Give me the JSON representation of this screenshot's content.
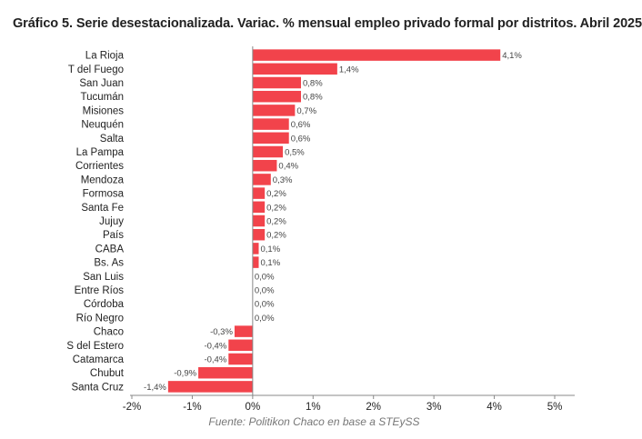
{
  "title": "Gráfico 5. Serie desestacionalizada. Variac. % mensual empleo privado formal por distritos. Abril 2025",
  "source": "Fuente: Politikon Chaco en base a STEySS",
  "colors": {
    "bar": "#f2434b",
    "axis": "#888888"
  },
  "chart_data": {
    "type": "bar",
    "orientation": "horizontal",
    "categories": [
      "La Rioja",
      "T del Fuego",
      "San Juan",
      "Tucumán",
      "Misiones",
      "Neuquén",
      "Salta",
      "La Pampa",
      "Corrientes",
      "Mendoza",
      "Formosa",
      "Santa Fe",
      "Jujuy",
      "País",
      "CABA",
      "Bs. As",
      "San Luis",
      "Entre Ríos",
      "Córdoba",
      "Río Negro",
      "Chaco",
      "S del Estero",
      "Catamarca",
      "Chubut",
      "Santa Cruz"
    ],
    "values": [
      4.1,
      1.4,
      0.8,
      0.8,
      0.7,
      0.6,
      0.6,
      0.5,
      0.4,
      0.3,
      0.2,
      0.2,
      0.2,
      0.2,
      0.1,
      0.1,
      0.0,
      0.0,
      0.0,
      0.0,
      -0.3,
      -0.4,
      -0.4,
      -0.9,
      -1.4
    ],
    "value_labels": [
      "4,1%",
      "1,4%",
      "0,8%",
      "0,8%",
      "0,7%",
      "0,6%",
      "0,6%",
      "0,5%",
      "0,4%",
      "0,3%",
      "0,2%",
      "0,2%",
      "0,2%",
      "0,2%",
      "0,1%",
      "0,1%",
      "0,0%",
      "0,0%",
      "0,0%",
      "0,0%",
      "-0,3%",
      "-0,4%",
      "-0,4%",
      "-0,9%",
      "-1,4%"
    ],
    "xlim": [
      -2,
      5
    ],
    "x_ticks": [
      -2,
      -1,
      0,
      1,
      2,
      3,
      4,
      5
    ],
    "x_tick_labels": [
      "-2%",
      "-1%",
      "0%",
      "1%",
      "2%",
      "3%",
      "4%",
      "5%"
    ],
    "grid": false,
    "legend": "none"
  }
}
